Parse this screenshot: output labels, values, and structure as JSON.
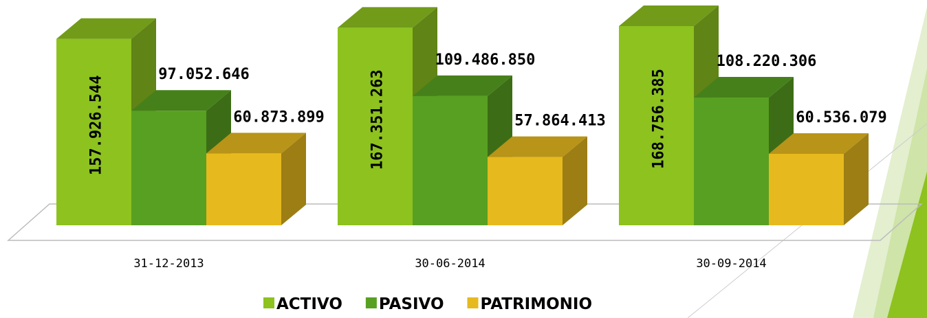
{
  "chart_data": {
    "type": "bar3d",
    "categories": [
      "31-12-2013",
      "30-06-2014",
      "30-09-2014"
    ],
    "series": [
      {
        "name": "ACTIVO",
        "color": "#8dc21f",
        "values": [
          157926544,
          167351263,
          168756385
        ],
        "value_labels": [
          "157.926.544",
          "167.351.263",
          "168.756.385"
        ]
      },
      {
        "name": "PASIVO",
        "color": "#58a021",
        "values": [
          97052646,
          109486850,
          108220306
        ],
        "value_labels": [
          "97.052.646",
          "109.486.850",
          "108.220.306"
        ]
      },
      {
        "name": "PATRIMONIO",
        "color": "#e6b91e",
        "values": [
          60873899,
          57864413,
          60536079
        ],
        "value_labels": [
          "60.873.899",
          "57.864.413",
          "60.536.079"
        ]
      }
    ],
    "legend": "bottom"
  }
}
